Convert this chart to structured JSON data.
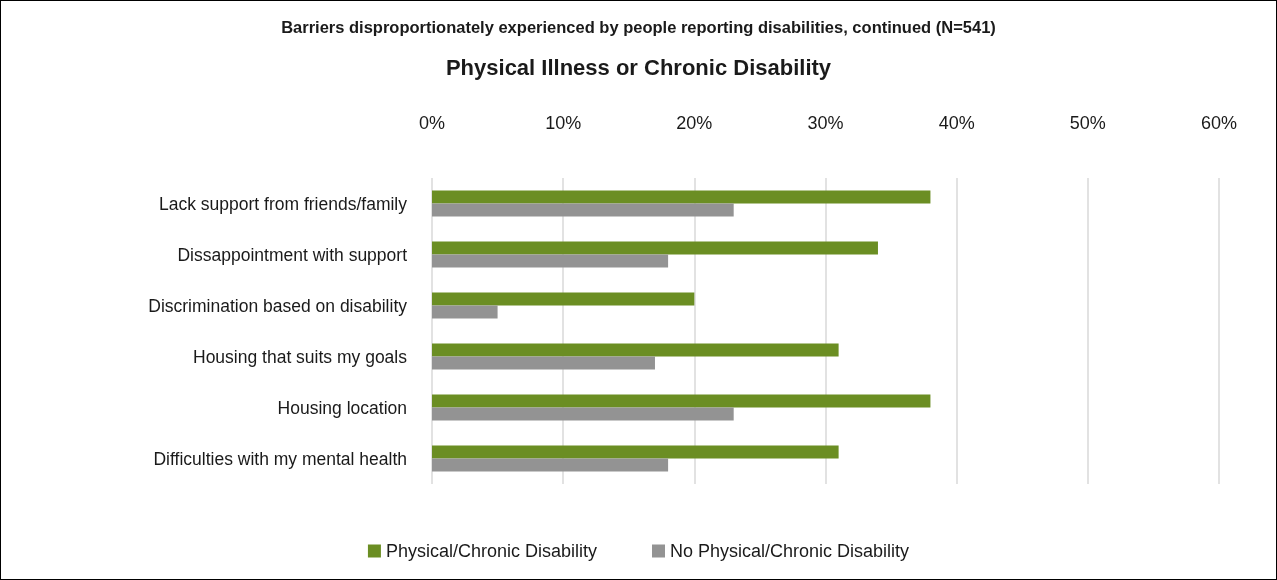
{
  "chart_data": {
    "type": "bar",
    "orientation": "horizontal",
    "title": "Barriers disproportionately experienced by people reporting disabilities, continued (N=541)",
    "subtitle": "Physical Illness or Chronic Disability",
    "categories": [
      "Lack support from friends/family",
      "Dissappointment with support",
      "Discrimination based on disability",
      "Housing that suits my goals",
      "Housing location",
      "Difficulties with my mental health"
    ],
    "series": [
      {
        "name": "Physical/Chronic Disability",
        "color": "#6b8e23",
        "values": [
          38,
          34,
          20,
          31,
          38,
          31
        ]
      },
      {
        "name": "No Physical/Chronic Disability",
        "color": "#939393",
        "values": [
          23,
          18,
          5,
          17,
          23,
          18
        ]
      }
    ],
    "xlim": [
      0,
      60
    ],
    "xticks": [
      {
        "value": 0,
        "label": "0%"
      },
      {
        "value": 10,
        "label": "10%"
      },
      {
        "value": 20,
        "label": "20%"
      },
      {
        "value": 30,
        "label": "30%"
      },
      {
        "value": 40,
        "label": "40%"
      },
      {
        "value": 50,
        "label": "50%"
      },
      {
        "value": 60,
        "label": "60%"
      }
    ],
    "grid": "x",
    "legend": "bottom"
  }
}
